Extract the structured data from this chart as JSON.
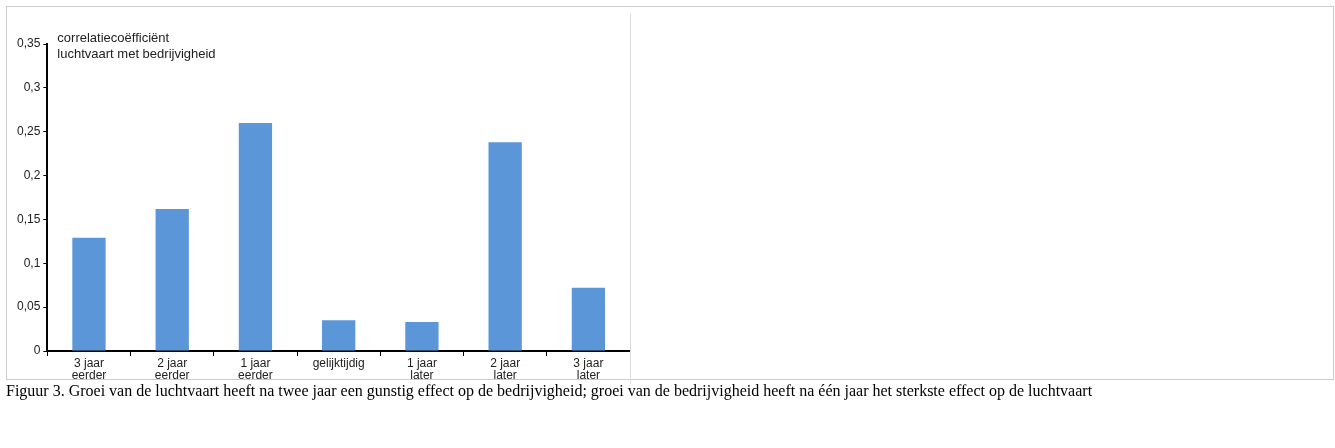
{
  "chart_data": {
    "type": "bar",
    "ylabel": "correlatiecoëfficiënt\nluchtvaart met bedrijvigheid",
    "categories": [
      "3 jaar eerder",
      "2 jaar eerder",
      "1 jaar eerder",
      "gelijktijdig",
      "1 jaar later",
      "2 jaar later",
      "3 jaar later"
    ],
    "values": [
      0.129,
      0.162,
      0.26,
      0.035,
      0.033,
      0.238,
      0.072
    ],
    "color": "#5b96d8",
    "ylim": [
      0,
      0.35
    ],
    "yticks": [
      {
        "value": 0,
        "label": "0"
      },
      {
        "value": 0.05,
        "label": "0,05"
      },
      {
        "value": 0.1,
        "label": "0,1"
      },
      {
        "value": 0.15,
        "label": "0,15"
      },
      {
        "value": 0.2,
        "label": "0,2"
      },
      {
        "value": 0.25,
        "label": "0,25"
      },
      {
        "value": 0.3,
        "label": "0,3"
      },
      {
        "value": 0.35,
        "label": "0,35"
      }
    ],
    "grid": false,
    "legend": false,
    "annotations": [
      "Figuur 3. Groei van de luchtvaart heeft na twee jaar een gunstig effect op de bedrijvigheid; groei van de bedrijvigheid heeft na één jaar het sterkste effect op de luchtvaart"
    ]
  }
}
